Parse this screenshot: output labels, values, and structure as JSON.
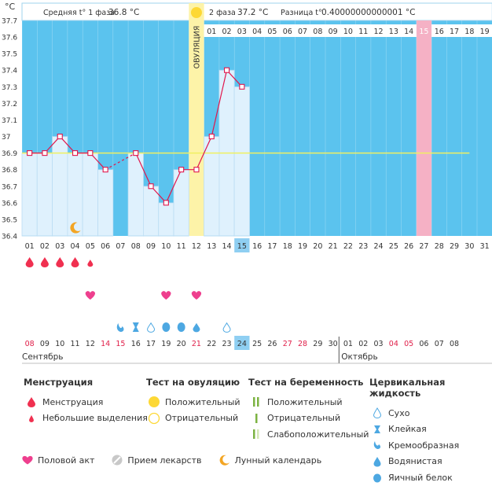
{
  "chart_data": {
    "type": "bar",
    "unit_label": "°C",
    "ylim": [
      36.4,
      37.7
    ],
    "y_ticks": [
      "37.7",
      "37.6",
      "37.5",
      "37.4",
      "37.3",
      "37.2",
      "37.1",
      "37",
      "36.9",
      "36.8",
      "36.7",
      "36.6",
      "36.5",
      "36.4"
    ],
    "cycle_days": [
      "01",
      "02",
      "03",
      "04",
      "05",
      "06",
      "07",
      "08",
      "09",
      "10",
      "11",
      "12",
      "13",
      "14",
      "15",
      "16",
      "17",
      "18",
      "19",
      "20",
      "21",
      "22",
      "23",
      "24",
      "25",
      "26",
      "27",
      "28",
      "29",
      "30",
      "31"
    ],
    "today_index": 14,
    "temperatures": [
      36.9,
      36.9,
      37.0,
      36.9,
      36.9,
      36.8,
      null,
      36.9,
      36.7,
      36.6,
      36.8,
      36.8,
      37.0,
      37.4,
      37.3
    ],
    "dashed_from_index": 5,
    "coverline_value": 36.9,
    "ovulation_index": 11,
    "ovulation_label": "ОВУЛЯЦИЯ",
    "highlight_day_index": 26,
    "phase2_days": [
      "01",
      "02",
      "03",
      "04",
      "05",
      "06",
      "07",
      "08",
      "09",
      "10",
      "11",
      "12",
      "13",
      "14",
      "15",
      "16",
      "17",
      "18",
      "19"
    ],
    "phase2_highlight_index": 14,
    "moon_index": 3,
    "menstruation_days": [
      0,
      1,
      2,
      3
    ],
    "light_spotting_days": [
      4
    ],
    "intercourse_days": [
      4,
      9,
      11
    ],
    "cervical_fluid": [
      {
        "index": 6,
        "kind": "creamy"
      },
      {
        "index": 7,
        "kind": "sticky"
      },
      {
        "index": 8,
        "kind": "dry"
      },
      {
        "index": 9,
        "kind": "eggwhite"
      },
      {
        "index": 10,
        "kind": "eggwhite"
      },
      {
        "index": 11,
        "kind": "watery"
      },
      {
        "index": 13,
        "kind": "dry"
      }
    ],
    "calendar_dates": [
      "08",
      "09",
      "10",
      "11",
      "12",
      "14",
      "15",
      "16",
      "17",
      "19",
      "20",
      "21",
      "22",
      "23",
      "24",
      "25",
      "26",
      "27",
      "28",
      "29",
      "30",
      "01",
      "02",
      "03",
      "04",
      "05",
      "06",
      "07",
      "08"
    ],
    "calendar_red_indices": [
      0,
      5,
      6,
      11,
      17,
      18,
      24,
      25
    ],
    "calendar_today_index": 14,
    "month_start": "Сентябрь",
    "month_next": "Октябрь",
    "month_next_index": 21
  },
  "header": {
    "phase1_label": "Средняя t° 1 фаза",
    "phase1_value": "36.8 °C",
    "phase2_label": "2 фаза",
    "phase2_value": "37.2 °C",
    "diff_label": "Разница t°",
    "diff_value": "0.40000000000001 °C"
  },
  "legend": {
    "menstruation": {
      "title": "Менструация",
      "items": [
        "Менструация",
        "Небольшие выделения"
      ]
    },
    "ovulation_test": {
      "title": "Тест на овуляцию",
      "items": [
        "Положительный",
        "Отрицательный"
      ]
    },
    "pregnancy_test": {
      "title": "Тест на беременность",
      "items": [
        "Положительный",
        "Отрицательный",
        "Слабоположительный"
      ]
    },
    "cervical": {
      "title": "Цервикальная жидкость",
      "items": [
        "Сухо",
        "Клейкая",
        "Кремообразная",
        "Водянистая",
        "Яичный белок"
      ]
    },
    "bottom": [
      "Половой акт",
      "Прием лекарств",
      "Лунный календарь"
    ]
  },
  "colors": {
    "sky": "#5bc3ee",
    "bar_fill": "#dff1fd",
    "bar_border": "#a8d4f0",
    "line": "#e1164c",
    "ovulation": "#fdf3a8",
    "highlight": "#f5b1c5",
    "today": "#8fcff2",
    "drop": "#f03050",
    "heart": "#ee3f8e",
    "fluid": "#4da8e2",
    "sun": "#fdd835",
    "moon": "#f3a523",
    "test_green": "#8bc34a",
    "weekend_red": "#e0204a"
  }
}
